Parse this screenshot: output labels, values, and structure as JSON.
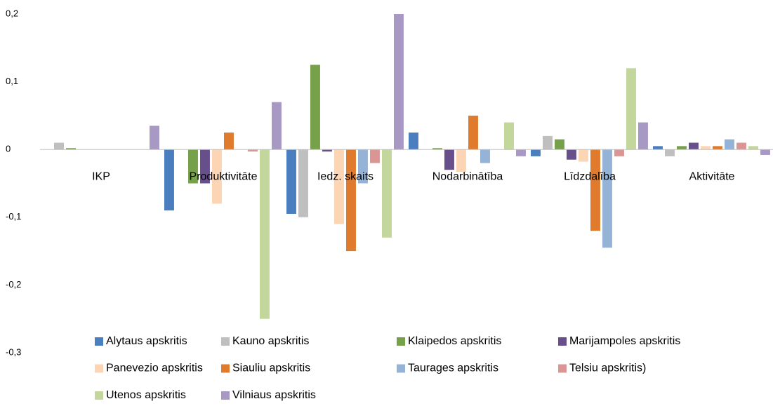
{
  "chart_data": {
    "type": "bar",
    "categories": [
      "IKP",
      "Produktivitāte",
      "Iedz. skaits",
      "Nodarbinātība",
      "Līdzdalība",
      "Aktivitāte"
    ],
    "series": [
      {
        "name": "Alytaus apskritis",
        "color": "#4a7ebf",
        "values": [
          0,
          -0.09,
          -0.095,
          0.025,
          -0.01,
          0.005
        ]
      },
      {
        "name": "Kauno apskritis",
        "color": "#bfbfbf",
        "values": [
          0.01,
          0,
          -0.1,
          0,
          0.02,
          -0.01
        ]
      },
      {
        "name": "Klaipedos apskritis",
        "color": "#77a04a",
        "values": [
          0.002,
          -0.05,
          0.125,
          0.002,
          0.015,
          0.005
        ]
      },
      {
        "name": "Marijampoles apskritis",
        "color": "#674f8c",
        "values": [
          0,
          -0.05,
          -0.003,
          -0.03,
          -0.015,
          0.01
        ]
      },
      {
        "name": "Panevezio apskritis",
        "color": "#fcd5b5",
        "values": [
          0,
          -0.08,
          -0.11,
          -0.033,
          -0.018,
          0.005
        ]
      },
      {
        "name": "Siauliu apskritis",
        "color": "#e07b2d",
        "values": [
          0,
          0.025,
          -0.15,
          0.05,
          -0.12,
          0.005
        ]
      },
      {
        "name": "Taurages apskritis",
        "color": "#95b3d7",
        "values": [
          0,
          0,
          -0.05,
          -0.02,
          -0.145,
          0.015
        ]
      },
      {
        "name": "Telsiu apskritis)",
        "color": "#d99694",
        "values": [
          0,
          -0.003,
          -0.02,
          0,
          -0.01,
          0.01
        ]
      },
      {
        "name": "Utenos apskritis",
        "color": "#c3d69b",
        "values": [
          0,
          -0.25,
          -0.13,
          0.04,
          0.12,
          0.005
        ]
      },
      {
        "name": "Vilniaus apskritis",
        "color": "#a898c4",
        "values": [
          0.035,
          0.07,
          0.2,
          -0.01,
          0.04,
          -0.008
        ]
      }
    ],
    "ylim": [
      -0.3,
      0.2
    ],
    "yticks": [
      {
        "value": 0.2,
        "label": "0,2"
      },
      {
        "value": 0.1,
        "label": "0,1"
      },
      0,
      {
        "value": -0.1,
        "label": "-0,1"
      },
      {
        "value": -0.2,
        "label": "-0,2"
      },
      {
        "value": -0.3,
        "label": "-0,3"
      }
    ],
    "grid": false,
    "legend": "bottom"
  }
}
